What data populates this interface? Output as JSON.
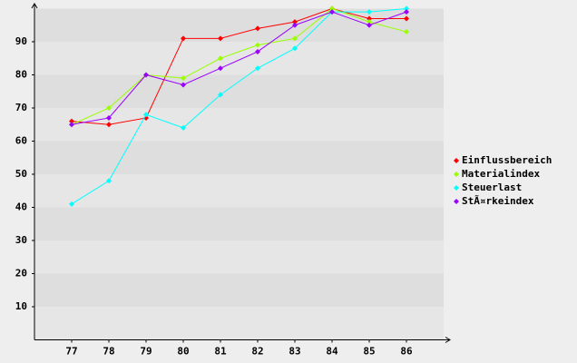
{
  "chart_data": {
    "type": "line",
    "x": [
      77,
      78,
      79,
      80,
      81,
      82,
      83,
      84,
      85,
      86
    ],
    "xlim": [
      76,
      87
    ],
    "xticks": [
      77,
      78,
      79,
      80,
      81,
      82,
      83,
      84,
      85,
      86
    ],
    "ylim": [
      0,
      100
    ],
    "yticks": [
      10,
      20,
      30,
      40,
      50,
      60,
      70,
      80,
      90
    ],
    "series": [
      {
        "name": "Einflussbereich",
        "color": "#ff0000",
        "values": [
          66,
          65,
          67,
          91,
          91,
          94,
          96,
          100,
          97,
          97
        ]
      },
      {
        "name": "Materialindex",
        "color": "#99ff00",
        "values": [
          65,
          70,
          80,
          79,
          85,
          89,
          91,
          100,
          96,
          93
        ]
      },
      {
        "name": "Steuerlast",
        "color": "#00ffff",
        "values": [
          41,
          48,
          68,
          64,
          74,
          82,
          88,
          99,
          99,
          100
        ]
      },
      {
        "name": "StÃ¤rkeindex",
        "color": "#9900ff",
        "values": [
          65,
          67,
          80,
          77,
          82,
          87,
          95,
          99,
          95,
          99
        ]
      }
    ]
  }
}
